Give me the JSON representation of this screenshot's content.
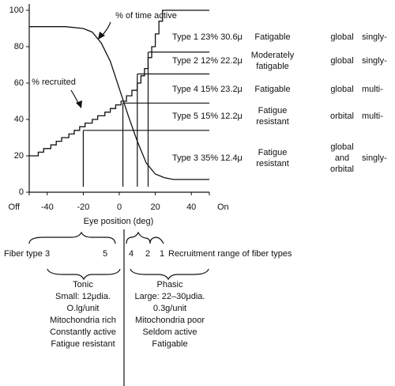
{
  "chart_data": {
    "type": "line",
    "xlabel": "Eye position (deg)",
    "xlim": [
      -50,
      50
    ],
    "ylim": [
      0,
      100
    ],
    "xticks": [
      {
        "value": -50,
        "label": "Off"
      },
      -40,
      -20,
      0,
      20,
      40,
      {
        "value": 50,
        "label": "On"
      }
    ],
    "yticks": [
      0,
      20,
      40,
      60,
      80,
      100
    ],
    "series": [
      {
        "name": "% of time active",
        "color": "#111",
        "x": [
          -50,
          -30,
          -20,
          -15,
          -10,
          -5,
          0,
          5,
          10,
          15,
          20,
          25,
          30,
          40,
          50
        ],
        "values": [
          91,
          91,
          90,
          88,
          82,
          72,
          57,
          42,
          28,
          16,
          10,
          8,
          7,
          7,
          7
        ]
      },
      {
        "name": "% recruited",
        "color": "#111",
        "x": [
          -50,
          -45,
          -45,
          -42,
          -42,
          -38,
          -38,
          -35,
          -35,
          -32,
          -32,
          -28,
          -28,
          -25,
          -25,
          -22,
          -22,
          -19,
          -19,
          -15,
          -15,
          -12,
          -12,
          -8,
          -8,
          -5,
          -5,
          -2,
          -2,
          1,
          1,
          4,
          4,
          7,
          7,
          10,
          10,
          12,
          12,
          14,
          14,
          16,
          16,
          18,
          18,
          20,
          20,
          22,
          22,
          24,
          24,
          50
        ],
        "values": [
          20,
          20,
          22,
          22,
          24,
          24,
          26,
          26,
          28,
          28,
          30,
          30,
          32,
          32,
          34,
          34,
          36,
          36,
          38,
          38,
          40,
          40,
          42,
          42,
          44,
          44,
          46,
          46,
          48,
          48,
          50,
          50,
          53,
          53,
          56,
          56,
          60,
          60,
          64,
          64,
          68,
          68,
          74,
          74,
          80,
          80,
          87,
          87,
          94,
          94,
          100,
          100
        ]
      }
    ],
    "thresholds": [
      {
        "x": -20,
        "y": 34
      },
      {
        "x": 2,
        "y": 49
      },
      {
        "x": 10,
        "y": 65
      },
      {
        "x": 16,
        "y": 77
      }
    ],
    "fiber_types": [
      {
        "label": "Type 1 23% 30.6μ",
        "fatigue": [
          "Fatigable"
        ],
        "layer": [
          "global"
        ],
        "innervation": "singly-"
      },
      {
        "label": "Type 2 12% 22.2μ",
        "fatigue": [
          "Moderately",
          "fatigable"
        ],
        "layer": [
          "global"
        ],
        "innervation": "singly-"
      },
      {
        "label": "Type 4 15% 23.2μ",
        "fatigue": [
          "Fatigable"
        ],
        "layer": [
          "global"
        ],
        "innervation": "multi-"
      },
      {
        "label": "Type 5 15% 12.2μ",
        "fatigue": [
          "Fatigue",
          "resistant"
        ],
        "layer": [
          "orbital"
        ],
        "innervation": "multi-"
      },
      {
        "label": "Type 3 35% 12.4μ",
        "fatigue": [
          "Fatigue",
          "resistant"
        ],
        "layer": [
          "global",
          "and",
          "orbital"
        ],
        "innervation": "singly-"
      }
    ]
  },
  "diagram": {
    "range_labels": [
      "Fiber type 3",
      "5",
      "4",
      "2",
      "1",
      "Recruitment range of fiber types"
    ],
    "tonic": [
      "Tonic",
      "Small: 12μdia.",
      "O.lg/unit",
      "Mitochondria rich",
      "Constantly active",
      "Fatigue resistant"
    ],
    "phasic": [
      "Phasic",
      "Large: 22–30μdia.",
      "0.3g/unit",
      "Mitochondria poor",
      "Seldom active",
      "Fatigable"
    ]
  }
}
